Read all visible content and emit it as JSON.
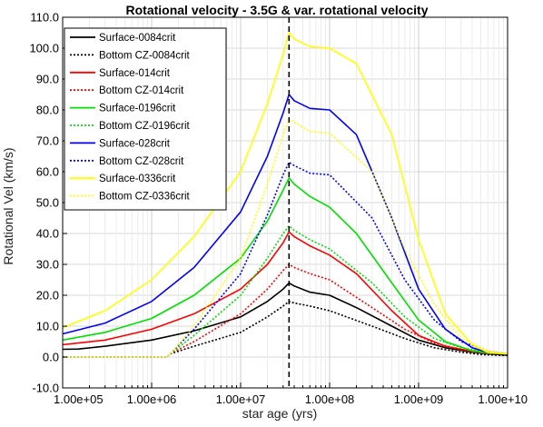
{
  "chart_data": {
    "type": "line",
    "title": "Rotational velocity - 3.5G & var. rotational velocity",
    "xlabel": "star age (yrs)",
    "ylabel": "Rotational Vel (km/s)",
    "x_scale": "log",
    "xlim": [
      100000,
      10000000000
    ],
    "ylim": [
      -10,
      110
    ],
    "x_ticks": [
      100000,
      1000000,
      10000000,
      100000000,
      1000000000,
      10000000000
    ],
    "x_tick_labels": [
      "1.00e+05",
      "1.00e+06",
      "1.00e+07",
      "1.00e+08",
      "1.00e+09",
      "1.00e+10"
    ],
    "y_ticks": [
      -10,
      0,
      10,
      20,
      30,
      40,
      50,
      60,
      70,
      80,
      90,
      100,
      110
    ],
    "y_tick_labels": [
      "-10.0",
      "0.0",
      "10.0",
      "20.0",
      "30.0",
      "40.0",
      "50.0",
      "60.0",
      "70.0",
      "80.0",
      "90.0",
      "100.0",
      "110.0"
    ],
    "grid": true,
    "legend_position": "top-left",
    "vline": {
      "x": 35000000,
      "style": "dashed",
      "color": "#000000"
    },
    "series": [
      {
        "name": "Surface-0084crit",
        "color": "#000000",
        "style": "solid",
        "points": [
          [
            100000,
            2.5
          ],
          [
            150000,
            2.6
          ],
          [
            300000,
            3.5
          ],
          [
            1000000,
            5.5
          ],
          [
            3000000,
            8.5
          ],
          [
            10000000,
            13
          ],
          [
            20000000,
            18
          ],
          [
            30000000,
            22
          ],
          [
            35000000,
            24
          ],
          [
            40000000,
            23
          ],
          [
            60000000,
            21
          ],
          [
            100000000,
            20
          ],
          [
            200000000,
            16
          ],
          [
            500000000,
            10
          ],
          [
            1000000000,
            5.5
          ],
          [
            2000000000,
            3
          ],
          [
            4000000000,
            1.6
          ],
          [
            6000000000,
            1
          ],
          [
            10000000000,
            0.6
          ]
        ]
      },
      {
        "name": "Bottom CZ-0084crit",
        "color": "#000000",
        "style": "dotted",
        "points": [
          [
            100000,
            0
          ],
          [
            1500000,
            0
          ],
          [
            1600000,
            1
          ],
          [
            3000000,
            3.5
          ],
          [
            10000000,
            8
          ],
          [
            20000000,
            13
          ],
          [
            30000000,
            16.5
          ],
          [
            35000000,
            18
          ],
          [
            40000000,
            17.5
          ],
          [
            60000000,
            16.5
          ],
          [
            100000000,
            15
          ],
          [
            300000000,
            10
          ],
          [
            700000000,
            6
          ],
          [
            1500000000,
            3
          ],
          [
            3000000000,
            1.6
          ],
          [
            5000000000,
            0.8
          ],
          [
            10000000000,
            0.5
          ]
        ]
      },
      {
        "name": "Surface-014crit",
        "color": "#ff0000",
        "style": "solid",
        "points": [
          [
            100000,
            4
          ],
          [
            300000,
            5.5
          ],
          [
            1000000,
            9
          ],
          [
            3000000,
            14
          ],
          [
            10000000,
            22
          ],
          [
            20000000,
            30
          ],
          [
            30000000,
            37
          ],
          [
            35000000,
            40.5
          ],
          [
            40000000,
            39
          ],
          [
            60000000,
            36
          ],
          [
            100000000,
            33
          ],
          [
            200000000,
            27
          ],
          [
            500000000,
            15
          ],
          [
            1000000000,
            7
          ],
          [
            2000000000,
            3.5
          ],
          [
            4000000000,
            1.8
          ],
          [
            6000000000,
            1.2
          ],
          [
            10000000000,
            1
          ]
        ]
      },
      {
        "name": "Bottom CZ-014crit",
        "color": "#ff0000",
        "style": "dotted",
        "points": [
          [
            100000,
            0
          ],
          [
            1500000,
            0
          ],
          [
            1600000,
            1
          ],
          [
            3000000,
            5
          ],
          [
            10000000,
            14
          ],
          [
            20000000,
            22
          ],
          [
            30000000,
            28
          ],
          [
            35000000,
            30
          ],
          [
            40000000,
            29
          ],
          [
            60000000,
            27
          ],
          [
            100000000,
            25
          ],
          [
            300000000,
            16
          ],
          [
            700000000,
            9
          ],
          [
            1500000000,
            4.5
          ],
          [
            3000000000,
            2.5
          ],
          [
            6000000000,
            1.5
          ],
          [
            10000000000,
            1
          ]
        ]
      },
      {
        "name": "Surface-0196crit",
        "color": "#00e000",
        "style": "solid",
        "points": [
          [
            100000,
            5.5
          ],
          [
            300000,
            8
          ],
          [
            1000000,
            12.5
          ],
          [
            3000000,
            20
          ],
          [
            10000000,
            32
          ],
          [
            20000000,
            44
          ],
          [
            30000000,
            54
          ],
          [
            35000000,
            58
          ],
          [
            40000000,
            56
          ],
          [
            60000000,
            52
          ],
          [
            100000000,
            48.5
          ],
          [
            200000000,
            40
          ],
          [
            500000000,
            24
          ],
          [
            1000000000,
            12
          ],
          [
            2000000000,
            5
          ],
          [
            4000000000,
            2
          ],
          [
            6000000000,
            1.3
          ],
          [
            10000000000,
            1
          ]
        ]
      },
      {
        "name": "Bottom CZ-0196crit",
        "color": "#00e000",
        "style": "dotted",
        "points": [
          [
            100000,
            0
          ],
          [
            1500000,
            0
          ],
          [
            1600000,
            1
          ],
          [
            3000000,
            7
          ],
          [
            10000000,
            20
          ],
          [
            20000000,
            32
          ],
          [
            30000000,
            40
          ],
          [
            35000000,
            42.5
          ],
          [
            40000000,
            41
          ],
          [
            60000000,
            38
          ],
          [
            100000000,
            35
          ],
          [
            300000000,
            24
          ],
          [
            700000000,
            13
          ],
          [
            1500000000,
            6
          ],
          [
            3000000000,
            3
          ],
          [
            6000000000,
            1.5
          ],
          [
            10000000000,
            1
          ]
        ]
      },
      {
        "name": "Surface-028crit",
        "color": "#0000ff",
        "style": "solid",
        "points": [
          [
            100000,
            7.5
          ],
          [
            300000,
            11
          ],
          [
            1000000,
            18
          ],
          [
            3000000,
            29
          ],
          [
            10000000,
            47
          ],
          [
            20000000,
            65
          ],
          [
            30000000,
            79
          ],
          [
            35000000,
            85
          ],
          [
            40000000,
            83
          ],
          [
            60000000,
            80.5
          ],
          [
            100000000,
            80
          ],
          [
            200000000,
            72
          ],
          [
            500000000,
            45
          ],
          [
            1000000000,
            22
          ],
          [
            2000000000,
            9
          ],
          [
            4000000000,
            3
          ],
          [
            6000000000,
            1.5
          ],
          [
            10000000000,
            1
          ]
        ]
      },
      {
        "name": "Bottom CZ-028crit",
        "color": "#0000ff",
        "style": "dotted",
        "points": [
          [
            100000,
            0
          ],
          [
            1500000,
            0
          ],
          [
            1600000,
            1
          ],
          [
            3000000,
            9
          ],
          [
            10000000,
            27
          ],
          [
            20000000,
            46
          ],
          [
            30000000,
            59
          ],
          [
            35000000,
            63
          ],
          [
            40000000,
            62
          ],
          [
            60000000,
            59.5
          ],
          [
            100000000,
            59
          ],
          [
            300000000,
            45
          ],
          [
            700000000,
            25
          ],
          [
            1500000000,
            12
          ],
          [
            3000000000,
            5
          ],
          [
            6000000000,
            2
          ],
          [
            10000000000,
            1
          ]
        ]
      },
      {
        "name": "Surface-0336crit",
        "color": "#ffff00",
        "style": "solid",
        "points": [
          [
            100000,
            9.5
          ],
          [
            300000,
            15
          ],
          [
            1000000,
            25
          ],
          [
            3000000,
            39
          ],
          [
            10000000,
            60
          ],
          [
            20000000,
            82
          ],
          [
            30000000,
            98
          ],
          [
            35000000,
            105
          ],
          [
            40000000,
            103
          ],
          [
            60000000,
            100.5
          ],
          [
            100000000,
            100
          ],
          [
            200000000,
            95
          ],
          [
            500000000,
            72
          ],
          [
            1000000000,
            38
          ],
          [
            2000000000,
            14
          ],
          [
            4000000000,
            4
          ],
          [
            6000000000,
            1.5
          ],
          [
            10000000000,
            1
          ]
        ]
      },
      {
        "name": "Bottom CZ-0336crit",
        "color": "#ffff00",
        "style": "dotted",
        "points": [
          [
            100000,
            0
          ],
          [
            1500000,
            0
          ],
          [
            1600000,
            1
          ],
          [
            3000000,
            10
          ],
          [
            10000000,
            32
          ],
          [
            20000000,
            56
          ],
          [
            30000000,
            72
          ],
          [
            35000000,
            77
          ],
          [
            40000000,
            76
          ],
          [
            60000000,
            73
          ],
          [
            100000000,
            72.5
          ],
          [
            300000000,
            60
          ],
          [
            700000000,
            35
          ],
          [
            1500000000,
            17
          ],
          [
            3000000000,
            6
          ],
          [
            6000000000,
            2
          ],
          [
            10000000000,
            1
          ]
        ]
      }
    ]
  }
}
